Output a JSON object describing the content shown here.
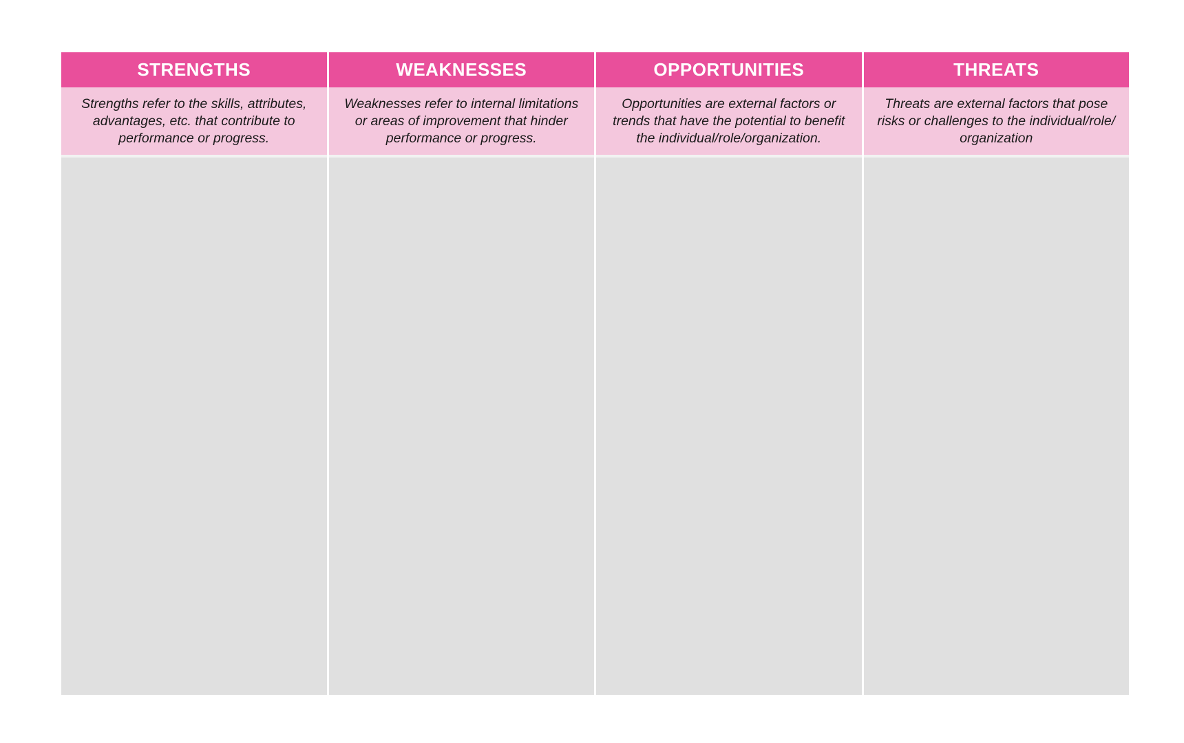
{
  "columns": [
    {
      "title": "STRENGTHS",
      "description": "Strengths refer to the skills, attributes, advantages, etc. that contribute to performance or progress."
    },
    {
      "title": "WEAKNESSES",
      "description": "Weaknesses refer to internal limitations or areas of improvement that hinder performance or progress."
    },
    {
      "title": "OPPORTUNITIES",
      "description": "Opportunities are external factors or trends that have the potential to benefit the individual/role/organization."
    },
    {
      "title": "THREATS",
      "description": "Threats are external factors that pose risks or challenges to the individual/role/ organization"
    }
  ],
  "colors": {
    "header": "#e94f9b",
    "description": "#f4c7dd",
    "body": "#e0e0e0"
  }
}
